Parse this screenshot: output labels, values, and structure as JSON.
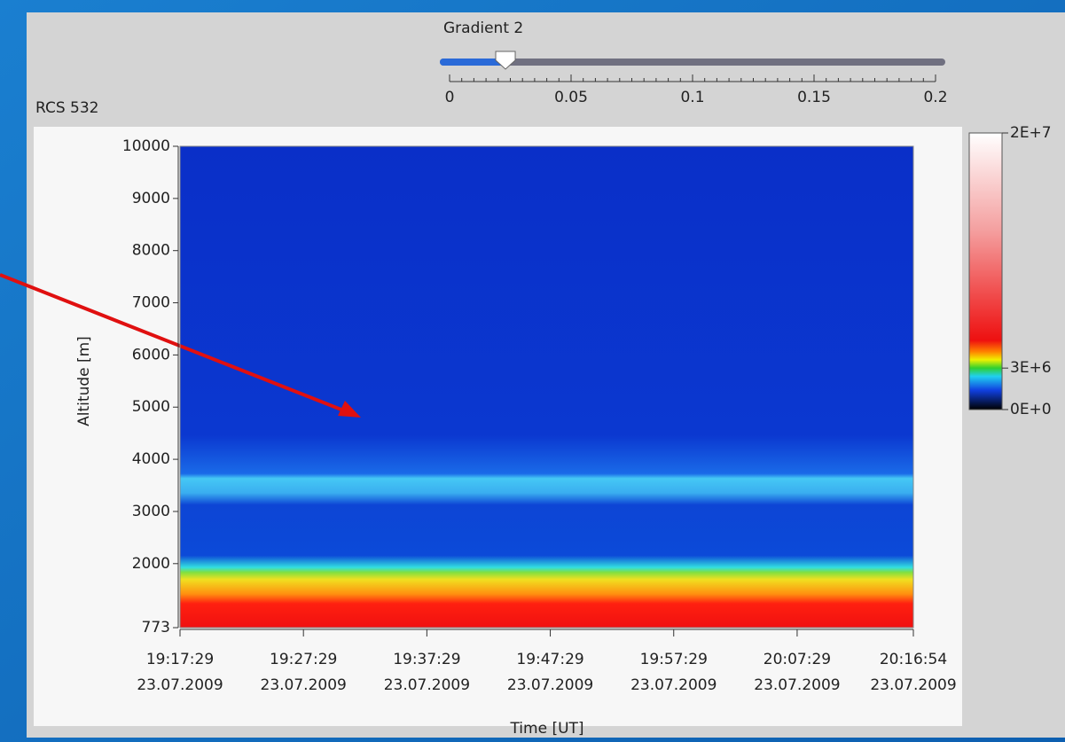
{
  "slider": {
    "label": "Gradient 2",
    "value": 0.023,
    "lim": [
      0,
      0.2
    ],
    "ticks": [
      0,
      0.05,
      0.1,
      0.15,
      0.2
    ]
  },
  "chart_data": {
    "type": "heatmap",
    "title": "RCS 532",
    "ylabel": "Altitude [m]",
    "xlabel": "Time [UT]",
    "ylim": [
      773,
      10000
    ],
    "yticks": [
      773,
      2000,
      3000,
      4000,
      5000,
      6000,
      7000,
      8000,
      9000,
      10000
    ],
    "xlim": [
      "19:17:29",
      "20:16:54"
    ],
    "xticks": [
      "19:17:29",
      "19:27:29",
      "19:37:29",
      "19:47:29",
      "19:57:29",
      "20:07:29",
      "20:16:54"
    ],
    "xtick_dates": [
      "23.07.2009",
      "23.07.2009",
      "23.07.2009",
      "23.07.2009",
      "23.07.2009",
      "23.07.2009",
      "23.07.2009"
    ],
    "colorbar": {
      "lim": [
        0,
        20000000
      ],
      "ticks": [
        {
          "value": 20000000,
          "label": "2E+7"
        },
        {
          "value": 3000000,
          "label": "3E+6"
        },
        {
          "value": 0,
          "label": "0E+0"
        }
      ]
    }
  }
}
